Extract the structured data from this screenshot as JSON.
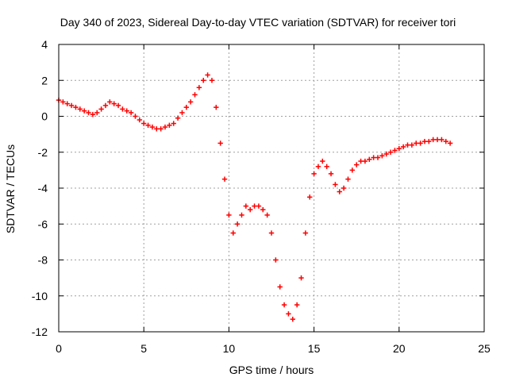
{
  "chart_data": {
    "type": "scatter",
    "title": "Day 340 of 2023, Sidereal Day-to-day VTEC variation (SDTVAR) for receiver tori",
    "xlabel": "GPS time / hours",
    "ylabel": "SDTVAR / TECUs",
    "xlim": [
      0,
      25
    ],
    "ylim": [
      -12,
      4
    ],
    "xticks": [
      0,
      5,
      10,
      15,
      20,
      25
    ],
    "yticks": [
      4,
      2,
      0,
      -2,
      -4,
      -6,
      -8,
      -10,
      -12
    ],
    "grid": true,
    "marker": "+",
    "series": [
      {
        "name": "",
        "color": "#ff0000",
        "x": [
          0.0,
          0.25,
          0.5,
          0.75,
          1.0,
          1.25,
          1.5,
          1.75,
          2.0,
          2.25,
          2.5,
          2.75,
          3.0,
          3.25,
          3.5,
          3.75,
          4.0,
          4.25,
          4.5,
          4.75,
          5.0,
          5.25,
          5.5,
          5.75,
          6.0,
          6.25,
          6.5,
          6.75,
          7.0,
          7.25,
          7.5,
          7.75,
          8.0,
          8.25,
          8.5,
          8.75,
          9.0,
          9.25,
          9.5,
          9.75,
          10.0,
          10.25,
          10.5,
          10.75,
          11.0,
          11.25,
          11.5,
          11.75,
          12.0,
          12.25,
          12.5,
          12.75,
          13.0,
          13.25,
          13.5,
          13.75,
          14.0,
          14.25,
          14.5,
          14.75,
          15.0,
          15.25,
          15.5,
          15.75,
          16.0,
          16.25,
          16.5,
          16.75,
          17.0,
          17.25,
          17.5,
          17.75,
          18.0,
          18.25,
          18.5,
          18.75,
          19.0,
          19.25,
          19.5,
          19.75,
          20.0,
          20.25,
          20.5,
          20.75,
          21.0,
          21.25,
          21.5,
          21.75,
          22.0,
          22.25,
          22.5,
          22.75,
          23.0
        ],
        "y": [
          0.9,
          0.8,
          0.7,
          0.6,
          0.5,
          0.4,
          0.3,
          0.2,
          0.1,
          0.2,
          0.4,
          0.6,
          0.8,
          0.7,
          0.6,
          0.4,
          0.3,
          0.2,
          0.0,
          -0.2,
          -0.4,
          -0.5,
          -0.6,
          -0.7,
          -0.7,
          -0.6,
          -0.5,
          -0.4,
          -0.1,
          0.2,
          0.5,
          0.8,
          1.2,
          1.6,
          2.0,
          2.3,
          2.0,
          0.5,
          -1.5,
          -3.5,
          -5.5,
          -6.5,
          -6.0,
          -5.5,
          -5.0,
          -5.2,
          -5.0,
          -5.0,
          -5.2,
          -5.5,
          -6.5,
          -8.0,
          -9.5,
          -10.5,
          -11.0,
          -11.3,
          -10.5,
          -9.0,
          -6.5,
          -4.5,
          -3.2,
          -2.8,
          -2.5,
          -2.8,
          -3.2,
          -3.8,
          -4.2,
          -4.0,
          -3.5,
          -3.0,
          -2.7,
          -2.5,
          -2.5,
          -2.4,
          -2.3,
          -2.3,
          -2.2,
          -2.1,
          -2.0,
          -1.9,
          -1.8,
          -1.7,
          -1.6,
          -1.6,
          -1.5,
          -1.5,
          -1.4,
          -1.4,
          -1.3,
          -1.3,
          -1.3,
          -1.4,
          -1.5
        ]
      }
    ]
  }
}
